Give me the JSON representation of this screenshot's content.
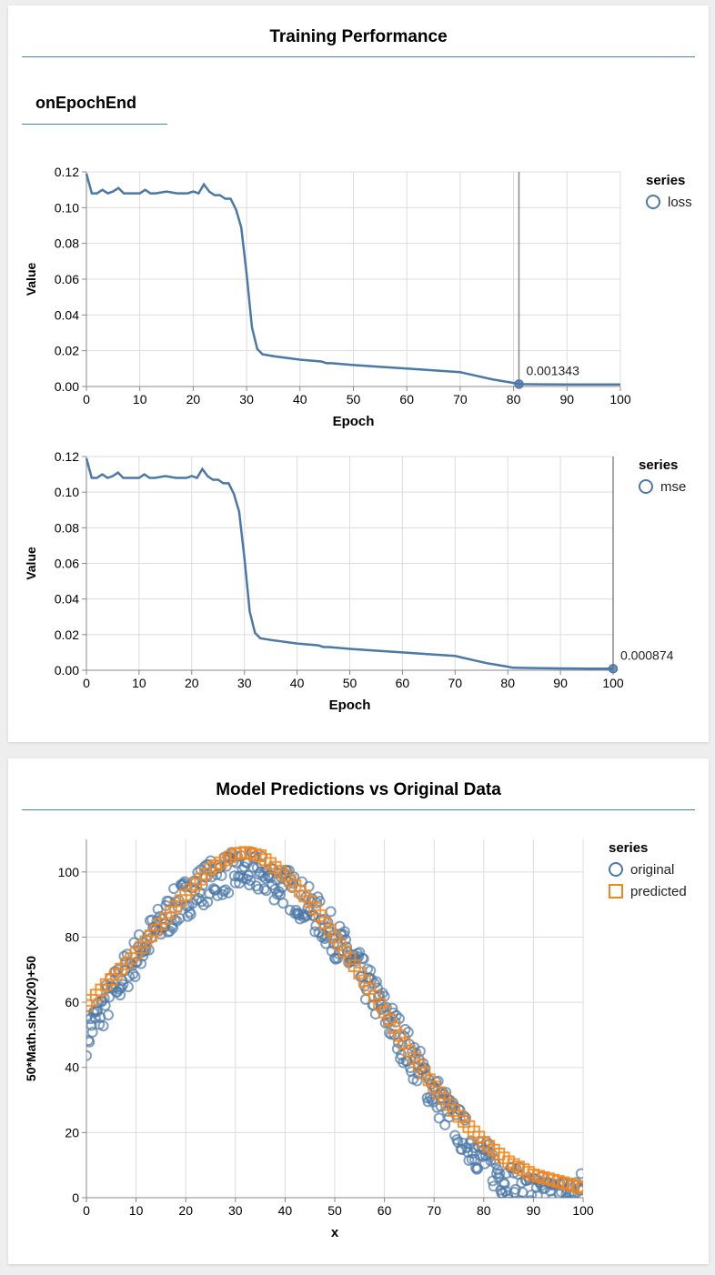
{
  "card1": {
    "title": "Training Performance",
    "tab_label": "onEpochEnd"
  },
  "card2": {
    "title": "Model Predictions vs Original Data"
  },
  "colors": {
    "series_blue": "#4c78a8",
    "series_orange": "#f58518",
    "grid": "#dddddd",
    "rule": "#4a7fbf"
  },
  "chart_data": [
    {
      "type": "line",
      "xlabel": "Epoch",
      "ylabel": "Value",
      "xlim": [
        0,
        100
      ],
      "ylim": [
        0,
        0.12
      ],
      "x_ticks": [
        0,
        10,
        20,
        30,
        40,
        50,
        60,
        70,
        80,
        90,
        100
      ],
      "y_ticks": [
        "0.00",
        "0.02",
        "0.04",
        "0.06",
        "0.08",
        "0.10",
        "0.12"
      ],
      "legend_title": "series",
      "legend_position": "top-right",
      "series": [
        {
          "name": "loss",
          "points": [
            [
              0,
              0.119
            ],
            [
              1,
              0.108
            ],
            [
              2,
              0.108
            ],
            [
              3,
              0.11
            ],
            [
              4,
              0.108
            ],
            [
              5,
              0.109
            ],
            [
              6,
              0.111
            ],
            [
              7,
              0.108
            ],
            [
              8,
              0.108
            ],
            [
              10,
              0.108
            ],
            [
              11,
              0.11
            ],
            [
              12,
              0.108
            ],
            [
              13,
              0.108
            ],
            [
              15,
              0.109
            ],
            [
              17,
              0.108
            ],
            [
              19,
              0.108
            ],
            [
              20,
              0.109
            ],
            [
              21,
              0.108
            ],
            [
              22,
              0.113
            ],
            [
              23,
              0.109
            ],
            [
              24,
              0.107
            ],
            [
              25,
              0.107
            ],
            [
              26,
              0.105
            ],
            [
              27,
              0.105
            ],
            [
              28,
              0.099
            ],
            [
              29,
              0.089
            ],
            [
              30,
              0.063
            ],
            [
              31,
              0.033
            ],
            [
              32,
              0.021
            ],
            [
              33,
              0.018
            ],
            [
              35,
              0.017
            ],
            [
              40,
              0.015
            ],
            [
              44,
              0.014
            ],
            [
              45,
              0.013
            ],
            [
              46,
              0.013
            ],
            [
              50,
              0.012
            ],
            [
              55,
              0.011
            ],
            [
              60,
              0.01
            ],
            [
              65,
              0.009
            ],
            [
              70,
              0.008
            ],
            [
              73,
              0.006
            ],
            [
              76,
              0.004
            ],
            [
              78,
              0.003
            ],
            [
              80,
              0.002
            ],
            [
              81,
              0.0013
            ],
            [
              85,
              0.0012
            ],
            [
              90,
              0.0011
            ],
            [
              95,
              0.0011
            ],
            [
              100,
              0.0011
            ]
          ],
          "highlight": {
            "x": 81,
            "y": 0.001343,
            "label": "0.001343"
          }
        }
      ]
    },
    {
      "type": "line",
      "xlabel": "Epoch",
      "ylabel": "Value",
      "xlim": [
        0,
        100
      ],
      "ylim": [
        0,
        0.12
      ],
      "x_ticks": [
        0,
        10,
        20,
        30,
        40,
        50,
        60,
        70,
        80,
        90,
        100
      ],
      "y_ticks": [
        "0.00",
        "0.02",
        "0.04",
        "0.06",
        "0.08",
        "0.10",
        "0.12"
      ],
      "legend_title": "series",
      "legend_position": "top-right",
      "series": [
        {
          "name": "mse",
          "points": [
            [
              0,
              0.119
            ],
            [
              1,
              0.108
            ],
            [
              2,
              0.108
            ],
            [
              3,
              0.11
            ],
            [
              4,
              0.108
            ],
            [
              5,
              0.109
            ],
            [
              6,
              0.111
            ],
            [
              7,
              0.108
            ],
            [
              8,
              0.108
            ],
            [
              10,
              0.108
            ],
            [
              11,
              0.11
            ],
            [
              12,
              0.108
            ],
            [
              13,
              0.108
            ],
            [
              15,
              0.109
            ],
            [
              17,
              0.108
            ],
            [
              19,
              0.108
            ],
            [
              20,
              0.109
            ],
            [
              21,
              0.108
            ],
            [
              22,
              0.113
            ],
            [
              23,
              0.109
            ],
            [
              24,
              0.107
            ],
            [
              25,
              0.107
            ],
            [
              26,
              0.105
            ],
            [
              27,
              0.105
            ],
            [
              28,
              0.099
            ],
            [
              29,
              0.089
            ],
            [
              30,
              0.063
            ],
            [
              31,
              0.033
            ],
            [
              32,
              0.021
            ],
            [
              33,
              0.018
            ],
            [
              35,
              0.017
            ],
            [
              40,
              0.015
            ],
            [
              44,
              0.014
            ],
            [
              45,
              0.013
            ],
            [
              46,
              0.013
            ],
            [
              50,
              0.012
            ],
            [
              55,
              0.011
            ],
            [
              60,
              0.01
            ],
            [
              65,
              0.009
            ],
            [
              70,
              0.008
            ],
            [
              73,
              0.006
            ],
            [
              76,
              0.004
            ],
            [
              78,
              0.003
            ],
            [
              80,
              0.002
            ],
            [
              81,
              0.0014
            ],
            [
              85,
              0.0012
            ],
            [
              90,
              0.001
            ],
            [
              95,
              0.0009
            ],
            [
              100,
              0.000874
            ]
          ],
          "highlight": {
            "x": 100,
            "y": 0.000874,
            "label": "0.000874"
          }
        }
      ]
    },
    {
      "type": "scatter",
      "xlabel": "x",
      "ylabel": "50*Math.sin(x/20)+50",
      "xlim": [
        0,
        100
      ],
      "ylim": [
        0,
        110
      ],
      "x_ticks": [
        0,
        10,
        20,
        30,
        40,
        50,
        60,
        70,
        80,
        90,
        100
      ],
      "y_ticks": [
        0,
        20,
        40,
        60,
        80,
        100
      ],
      "legend_title": "series",
      "legend_position": "top-right",
      "series": [
        {
          "name": "original",
          "marker": "circle",
          "function": "50*Math.sin(x/20)+50",
          "noise": 8,
          "x_start": 0,
          "x_end": 100,
          "x_step": 0.2
        },
        {
          "name": "predicted",
          "marker": "square",
          "points": [
            [
              0,
              59
            ],
            [
              10,
              75
            ],
            [
              20,
              93
            ],
            [
              25,
              101
            ],
            [
              30,
              105.5
            ],
            [
              32,
              106
            ],
            [
              35,
              105
            ],
            [
              40,
              99
            ],
            [
              45,
              91
            ],
            [
              50,
              80
            ],
            [
              55,
              69
            ],
            [
              60,
              57
            ],
            [
              65,
              45
            ],
            [
              70,
              34
            ],
            [
              75,
              25
            ],
            [
              80,
              17
            ],
            [
              85,
              11
            ],
            [
              90,
              7
            ],
            [
              95,
              5
            ],
            [
              100,
              3
            ]
          ],
          "x_step": 1
        }
      ]
    }
  ]
}
